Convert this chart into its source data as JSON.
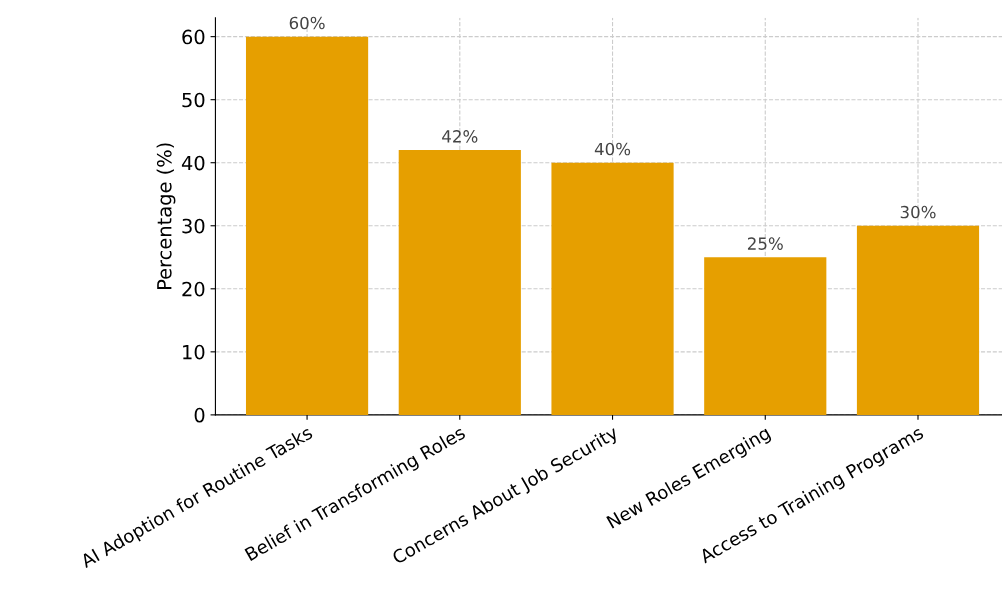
{
  "chart_data": {
    "type": "bar",
    "ylabel": "Percentage (%)",
    "categories": [
      "AI Adoption for Routine Tasks",
      "Belief in Transforming Roles",
      "Concerns About Job Security",
      "New Roles Emerging",
      "Access to Training Programs"
    ],
    "values": [
      60,
      42,
      40,
      25,
      30
    ],
    "value_labels": [
      "60%",
      "42%",
      "40%",
      "25%",
      "30%"
    ],
    "color": "#e69f00",
    "ylim": [
      0,
      63
    ],
    "yticks": [
      0,
      10,
      20,
      30,
      40,
      50,
      60
    ],
    "grid": true
  }
}
